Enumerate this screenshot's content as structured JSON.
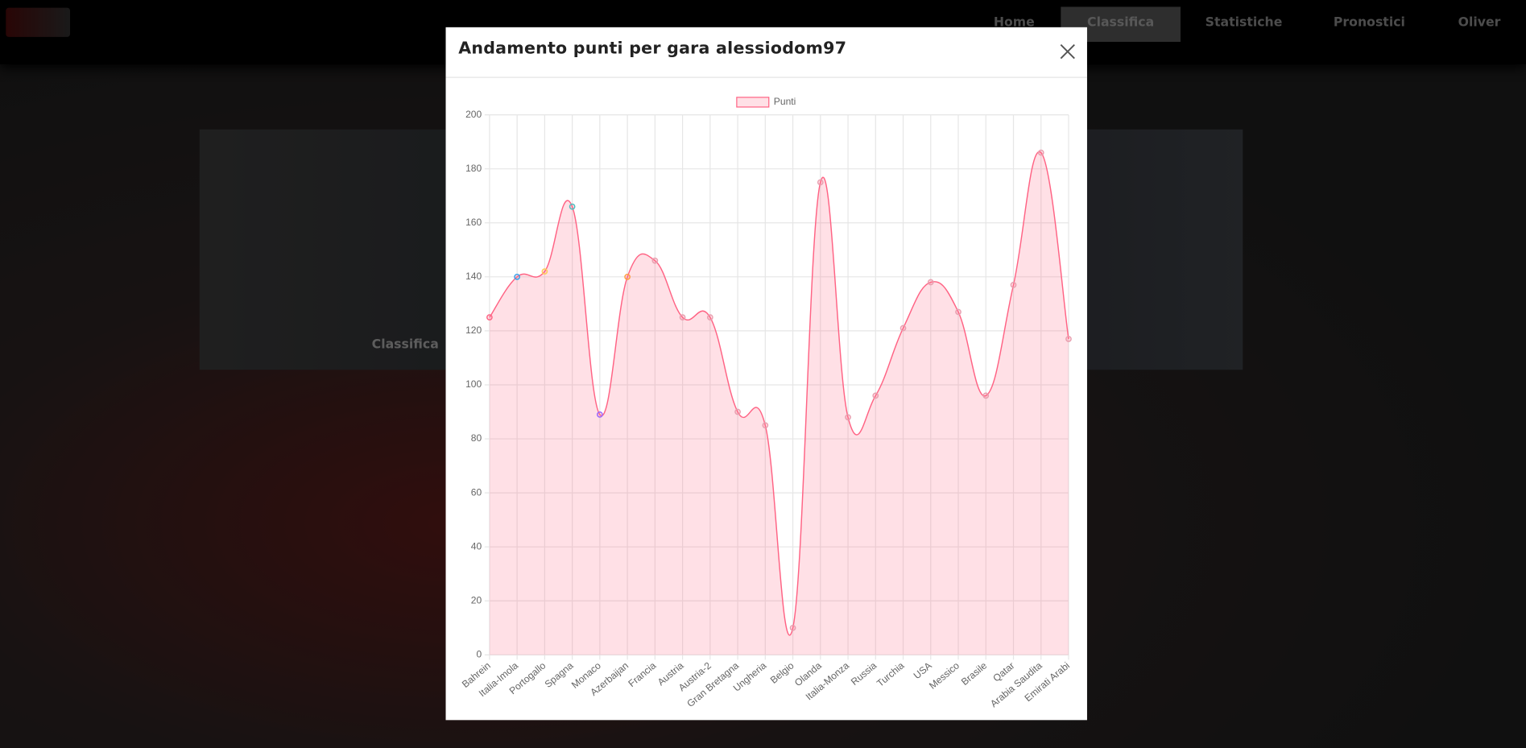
{
  "nav": {
    "items": [
      "Home",
      "Classifica",
      "Statistiche",
      "Pronostici",
      "Oliver"
    ]
  },
  "background_card": {
    "caption": "Classifica"
  },
  "modal": {
    "title": "Andamento punti per gara alessiodom97"
  },
  "chart_data": {
    "type": "line",
    "categories": [
      "Bahrein",
      "Italia-Imola",
      "Portogallo",
      "Spagna",
      "Monaco",
      "Azerbaijan",
      "Francia",
      "Austria",
      "Austria-2",
      "Gran Bretagna",
      "Ungheria",
      "Belgio",
      "Olanda",
      "Italia-Monza",
      "Russia",
      "Turchia",
      "USA",
      "Messico",
      "Brasile",
      "Qatar",
      "Arabia Saudita",
      "Emirati Arabi"
    ],
    "series": [
      {
        "name": "Punti",
        "color": "#ff6384",
        "fill": "rgba(255,99,132,0.2)",
        "values": [
          125,
          140,
          142,
          166,
          89,
          140,
          146,
          125,
          125,
          90,
          85,
          10,
          175,
          88,
          96,
          121,
          138,
          127,
          96,
          137,
          186,
          117
        ],
        "point_colors": [
          "#ff6384",
          "#36a2eb",
          "#ffce56",
          "#4bc0c0",
          "#9966ff",
          "#ff9f40",
          "#e8a0b0",
          "#e8a0b0",
          "#e8a0b0",
          "#e8a0b0",
          "#e8a0b0",
          "#e8a0b0",
          "#e8a0b0",
          "#e8a0b0",
          "#e8a0b0",
          "#e8a0b0",
          "#e8a0b0",
          "#e8a0b0",
          "#e8a0b0",
          "#e8a0b0",
          "#e8a0b0",
          "#e8a0b0"
        ]
      }
    ],
    "ylim": [
      0,
      200
    ],
    "yticks": [
      0,
      20,
      40,
      60,
      80,
      100,
      120,
      140,
      160,
      180,
      200
    ],
    "grid": true,
    "legend": "top"
  }
}
